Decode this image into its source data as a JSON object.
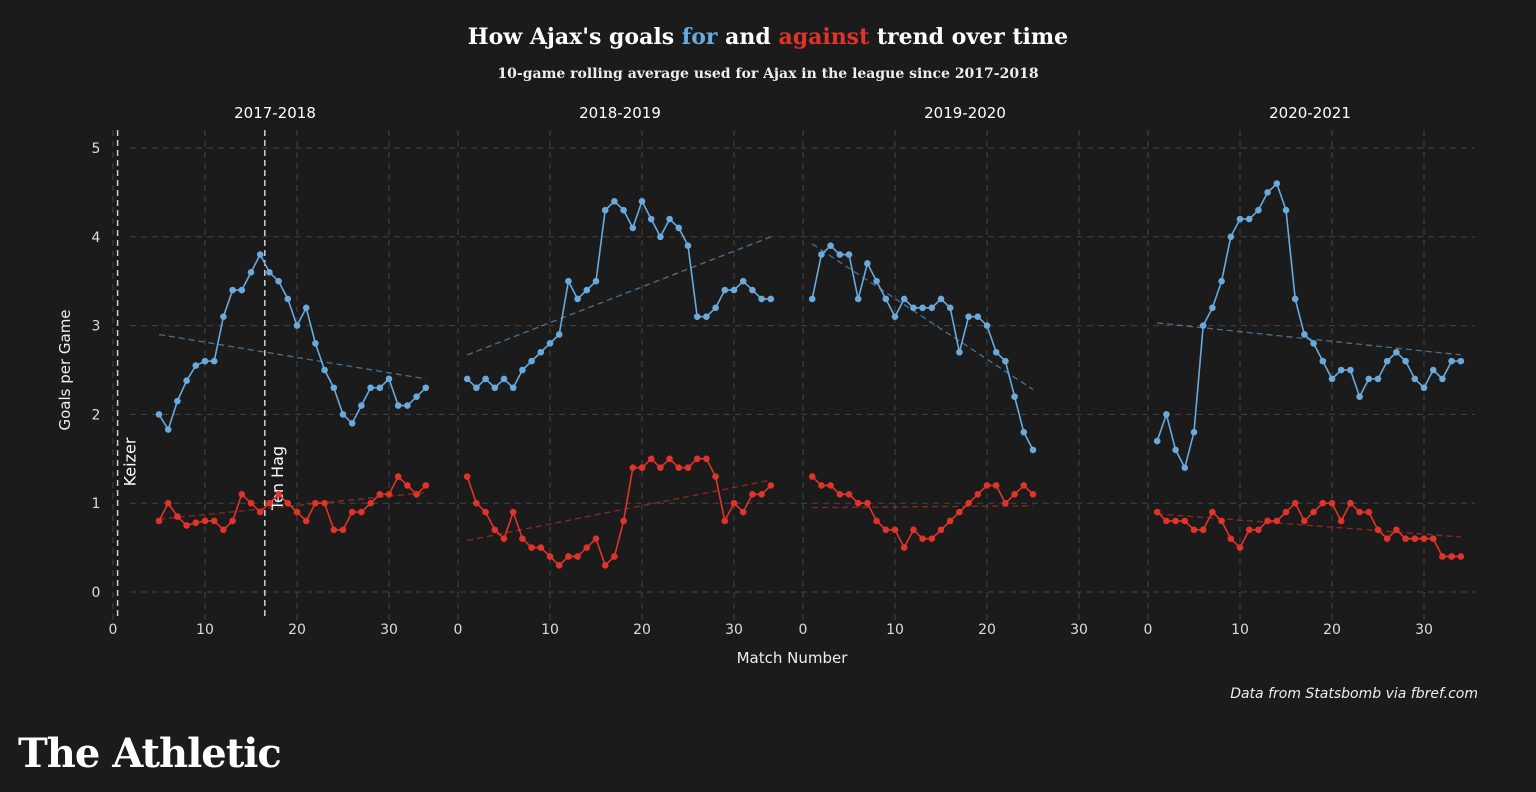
{
  "title": {
    "prefix": "How Ajax's goals ",
    "for_word": "for",
    "middle": " and ",
    "against_word": "against",
    "suffix": " trend over time"
  },
  "subtitle": "10-game rolling average used for Ajax in the league since 2017-2018",
  "source": "Data from Statsbomb via fbref.com",
  "brand": "The Athletic",
  "colors": {
    "background": "#1b1b1b",
    "for": "#6aa9dc",
    "against": "#e0342a",
    "grid": "#444444"
  },
  "chart_data": {
    "type": "line",
    "xlabel": "Match Number",
    "ylabel": "Goals per Game",
    "ylim": [
      0,
      5
    ],
    "yticks": [
      0,
      1,
      2,
      3,
      4,
      5
    ],
    "xlim": [
      0,
      35
    ],
    "xticks": [
      0,
      10,
      20,
      30
    ],
    "grid": true,
    "panels": [
      {
        "title": "2017-2018",
        "x_start": 5,
        "series": [
          {
            "role": "for",
            "values": [
              2.0,
              1.83,
              2.15,
              2.38,
              2.55,
              2.6,
              2.6,
              3.1,
              3.4,
              3.4,
              3.6,
              3.8,
              3.6,
              3.5,
              3.3,
              3.0,
              3.2,
              2.8,
              2.5,
              2.3,
              2.0,
              1.9,
              2.1,
              2.3,
              2.3,
              2.4,
              2.1,
              2.1,
              2.2,
              2.3
            ],
            "trend": [
              2.9,
              2.4
            ]
          },
          {
            "role": "against",
            "values": [
              0.8,
              1.0,
              0.85,
              0.75,
              0.78,
              0.8,
              0.8,
              0.7,
              0.8,
              1.1,
              1.0,
              0.9,
              1.0,
              1.1,
              1.0,
              0.9,
              0.8,
              1.0,
              1.0,
              0.7,
              0.7,
              0.9,
              0.9,
              1.0,
              1.1,
              1.1,
              1.3,
              1.2,
              1.1,
              1.2
            ],
            "trend": [
              0.82,
              1.12
            ]
          }
        ],
        "annotations": [
          {
            "x": 1,
            "label": "Keizer"
          },
          {
            "x": 17,
            "label": "Ten Hag"
          }
        ]
      },
      {
        "title": "2018-2019",
        "x_start": 1,
        "series": [
          {
            "role": "for",
            "values": [
              2.4,
              2.3,
              2.4,
              2.3,
              2.4,
              2.3,
              2.5,
              2.6,
              2.7,
              2.8,
              2.9,
              3.5,
              3.3,
              3.4,
              3.5,
              4.3,
              4.4,
              4.3,
              4.1,
              4.4,
              4.2,
              4.0,
              4.2,
              4.1,
              3.9,
              3.1,
              3.1,
              3.2,
              3.4,
              3.4,
              3.5,
              3.4,
              3.3,
              3.3
            ],
            "trend": [
              2.67,
              4.0
            ]
          },
          {
            "role": "against",
            "values": [
              1.3,
              1.0,
              0.9,
              0.7,
              0.6,
              0.9,
              0.6,
              0.5,
              0.5,
              0.4,
              0.3,
              0.4,
              0.4,
              0.5,
              0.6,
              0.3,
              0.4,
              0.8,
              1.4,
              1.4,
              1.5,
              1.4,
              1.5,
              1.4,
              1.4,
              1.5,
              1.5,
              1.3,
              0.8,
              1.0,
              0.9,
              1.1,
              1.1,
              1.2
            ],
            "trend": [
              0.58,
              1.26
            ]
          }
        ],
        "annotations": []
      },
      {
        "title": "2019-2020",
        "x_start": 1,
        "series": [
          {
            "role": "for",
            "values": [
              3.3,
              3.8,
              3.9,
              3.8,
              3.8,
              3.3,
              3.7,
              3.5,
              3.3,
              3.1,
              3.3,
              3.2,
              3.2,
              3.2,
              3.3,
              3.2,
              2.7,
              3.1,
              3.1,
              3.0,
              2.7,
              2.6,
              2.2,
              1.8,
              1.6
            ],
            "trend": [
              3.92,
              2.28
            ]
          },
          {
            "role": "against",
            "values": [
              1.3,
              1.2,
              1.2,
              1.1,
              1.1,
              1.0,
              1.0,
              0.8,
              0.7,
              0.7,
              0.5,
              0.7,
              0.6,
              0.6,
              0.7,
              0.8,
              0.9,
              1.0,
              1.1,
              1.2,
              1.2,
              1.0,
              1.1,
              1.2,
              1.1
            ],
            "trend": [
              0.95,
              0.97
            ]
          }
        ],
        "annotations": []
      },
      {
        "title": "2020-2021",
        "x_start": 1,
        "series": [
          {
            "role": "for",
            "values": [
              1.7,
              2.0,
              1.6,
              1.4,
              1.8,
              3.0,
              3.2,
              3.5,
              4.0,
              4.2,
              4.2,
              4.3,
              4.5,
              4.6,
              4.3,
              3.3,
              2.9,
              2.8,
              2.6,
              2.4,
              2.5,
              2.5,
              2.2,
              2.4,
              2.4,
              2.6,
              2.7,
              2.6,
              2.4,
              2.3,
              2.5,
              2.4,
              2.6,
              2.6
            ],
            "trend": [
              3.03,
              2.67
            ]
          },
          {
            "role": "against",
            "values": [
              0.9,
              0.8,
              0.8,
              0.8,
              0.7,
              0.7,
              0.9,
              0.8,
              0.6,
              0.5,
              0.7,
              0.7,
              0.8,
              0.8,
              0.9,
              1.0,
              0.8,
              0.9,
              1.0,
              1.0,
              0.8,
              1.0,
              0.9,
              0.9,
              0.7,
              0.6,
              0.7,
              0.6,
              0.6,
              0.6,
              0.6,
              0.4,
              0.4,
              0.4
            ],
            "trend": [
              0.88,
              0.62
            ]
          }
        ],
        "annotations": []
      }
    ]
  }
}
